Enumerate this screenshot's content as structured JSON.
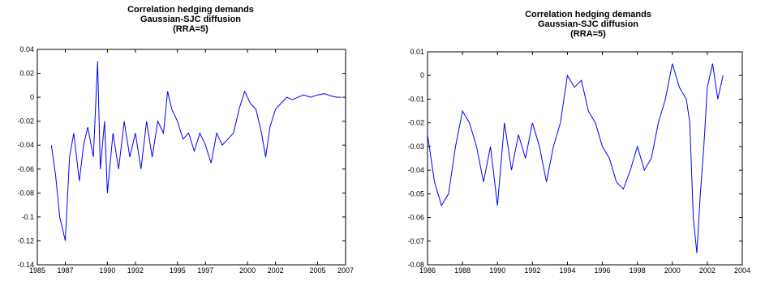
{
  "chart_data": [
    {
      "type": "line",
      "title": "Correlation hedging demands",
      "subtitle": "Gaussian-SJC diffusion",
      "subtitle2": "(RRA=5)",
      "xlabel": "",
      "ylabel": "",
      "xlim": [
        1985,
        2007
      ],
      "ylim": [
        -0.14,
        0.04
      ],
      "xticks": [
        1985,
        1987,
        1990,
        1992,
        1995,
        1997,
        2000,
        2002,
        2005,
        2007
      ],
      "yticks": [
        -0.14,
        -0.12,
        -0.1,
        -0.08,
        -0.06,
        -0.04,
        -0.02,
        0,
        0.02,
        0.04
      ],
      "xtick_labels": [
        "1985",
        "1987",
        "1990",
        "1992",
        "1995",
        "1997",
        "2000",
        "2002",
        "2005",
        "2007"
      ],
      "ytick_labels": [
        "-0.14",
        "-0.12",
        "-0.1",
        "-0.08",
        "-0.06",
        "-0.04",
        "-0.02",
        "0",
        "0.02",
        "0.04"
      ],
      "grid": false,
      "color": "#0000ff",
      "series": [
        {
          "x": [
            1986.0,
            1986.3,
            1986.6,
            1987.0,
            1987.3,
            1987.6,
            1988.0,
            1988.3,
            1988.6,
            1989.0,
            1989.3,
            1989.5,
            1989.8,
            1990.0,
            1990.4,
            1990.8,
            1991.2,
            1991.6,
            1992.0,
            1992.4,
            1992.8,
            1993.2,
            1993.6,
            1994.0,
            1994.3,
            1994.6,
            1995.0,
            1995.4,
            1995.8,
            1996.2,
            1996.6,
            1997.0,
            1997.4,
            1997.8,
            1998.2,
            1998.6,
            1999.0,
            1999.4,
            1999.8,
            2000.2,
            2000.6,
            2001.0,
            2001.3,
            2001.6,
            2002.0,
            2002.4,
            2002.8,
            2003.2,
            2003.6,
            2004.0,
            2004.5,
            2005.0,
            2005.5,
            2006.0,
            2006.4,
            2006.7
          ],
          "y": [
            -0.04,
            -0.065,
            -0.1,
            -0.12,
            -0.05,
            -0.03,
            -0.07,
            -0.04,
            -0.025,
            -0.05,
            0.03,
            -0.06,
            -0.02,
            -0.08,
            -0.03,
            -0.06,
            -0.02,
            -0.05,
            -0.03,
            -0.06,
            -0.02,
            -0.05,
            -0.02,
            -0.03,
            0.005,
            -0.01,
            -0.02,
            -0.035,
            -0.03,
            -0.045,
            -0.03,
            -0.04,
            -0.055,
            -0.03,
            -0.04,
            -0.035,
            -0.03,
            -0.01,
            0.005,
            -0.005,
            -0.01,
            -0.03,
            -0.05,
            -0.025,
            -0.01,
            -0.005,
            0.0,
            -0.002,
            0.0,
            0.002,
            0.0,
            0.002,
            0.003,
            0.001,
            0.0,
            0.0
          ]
        }
      ]
    },
    {
      "type": "line",
      "title": "Correlation hedging demands",
      "subtitle": "Gaussian-SJC diffusion",
      "subtitle2": "(RRA=5)",
      "xlabel": "",
      "ylabel": "",
      "xlim": [
        1986,
        2004
      ],
      "ylim": [
        -0.08,
        0.01
      ],
      "xticks": [
        1986,
        1988,
        1990,
        1992,
        1994,
        1996,
        1998,
        2000,
        2002,
        2004
      ],
      "yticks": [
        -0.08,
        -0.07,
        -0.06,
        -0.05,
        -0.04,
        -0.03,
        -0.02,
        -0.01,
        0,
        0.01
      ],
      "xtick_labels": [
        "1986",
        "1988",
        "1990",
        "1992",
        "1994",
        "1996",
        "1998",
        "2000",
        "2002",
        "2004"
      ],
      "ytick_labels": [
        "-0.08",
        "-0.07",
        "-0.06",
        "-0.05",
        "-0.04",
        "-0.03",
        "-0.02",
        "-0.01",
        "0",
        "0.01"
      ],
      "grid": false,
      "color": "#0000ff",
      "series": [
        {
          "x": [
            1986.0,
            1986.4,
            1986.8,
            1987.2,
            1987.6,
            1988.0,
            1988.4,
            1988.8,
            1989.2,
            1989.6,
            1990.0,
            1990.4,
            1990.8,
            1991.2,
            1991.6,
            1992.0,
            1992.4,
            1992.8,
            1993.2,
            1993.6,
            1994.0,
            1994.4,
            1994.8,
            1995.2,
            1995.6,
            1996.0,
            1996.4,
            1996.8,
            1997.2,
            1997.6,
            1998.0,
            1998.4,
            1998.8,
            1999.2,
            1999.6,
            2000.0,
            2000.4,
            2000.8,
            2001.0,
            2001.2,
            2001.4,
            2001.6,
            2001.8,
            2002.0,
            2002.3,
            2002.6,
            2002.9
          ],
          "y": [
            -0.025,
            -0.045,
            -0.055,
            -0.05,
            -0.03,
            -0.015,
            -0.02,
            -0.03,
            -0.045,
            -0.03,
            -0.055,
            -0.02,
            -0.04,
            -0.025,
            -0.035,
            -0.02,
            -0.03,
            -0.045,
            -0.03,
            -0.02,
            0.0,
            -0.005,
            -0.002,
            -0.015,
            -0.02,
            -0.03,
            -0.035,
            -0.045,
            -0.048,
            -0.04,
            -0.03,
            -0.04,
            -0.035,
            -0.02,
            -0.01,
            0.005,
            -0.005,
            -0.01,
            -0.02,
            -0.06,
            -0.075,
            -0.05,
            -0.03,
            -0.005,
            0.005,
            -0.01,
            0.0
          ]
        }
      ]
    }
  ]
}
